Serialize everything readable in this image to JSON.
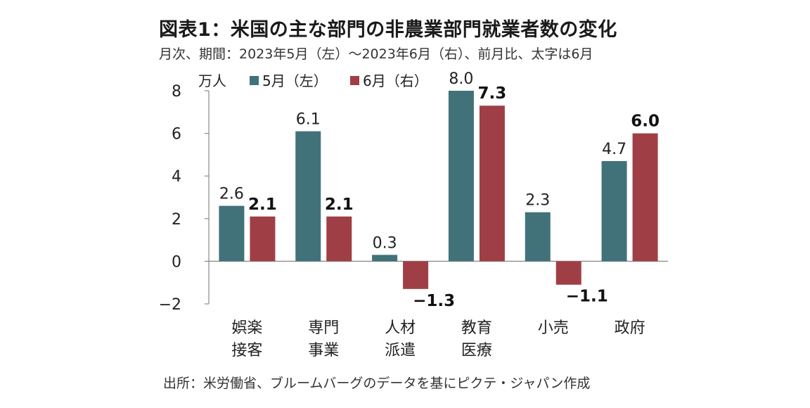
{
  "title": "図表1：米国の主な部門の非農業部門就業者数の変化",
  "subtitle": "月次、期間：2023年5月（左）～2023年6月（右）、前月比、太字は6月",
  "source": "出所：米労働省、ブルームバーグのデータを基にピクテ・ジャパン作成",
  "chart_data": {
    "type": "bar",
    "unit_label": "万人",
    "categories": [
      [
        "娯楽",
        "接客"
      ],
      [
        "専門",
        "事業"
      ],
      [
        "人材",
        "派遣"
      ],
      [
        "教育",
        "医療"
      ],
      [
        "小売"
      ],
      [
        "政府"
      ]
    ],
    "series": [
      {
        "name": "5月（左）",
        "values": [
          2.6,
          6.1,
          0.3,
          8.0,
          2.3,
          4.7
        ],
        "labels": [
          "2.6",
          "6.1",
          "0.3",
          "8.0",
          "2.3",
          "4.7"
        ],
        "color": "#41727a"
      },
      {
        "name": "6月（右）",
        "values": [
          2.1,
          2.1,
          -1.3,
          7.3,
          -1.1,
          6.0
        ],
        "labels": [
          "2.1",
          "2.1",
          "−1.3",
          "7.3",
          "−1.1",
          "6.0"
        ],
        "color": "#a03e46"
      }
    ],
    "ylim": [
      -2,
      8
    ],
    "yticks": [
      8,
      6,
      4,
      2,
      0,
      -2
    ],
    "ytick_labels": [
      "8",
      "6",
      "4",
      "2",
      "0",
      "−2"
    ],
    "grid": false,
    "legend_position": "top"
  }
}
